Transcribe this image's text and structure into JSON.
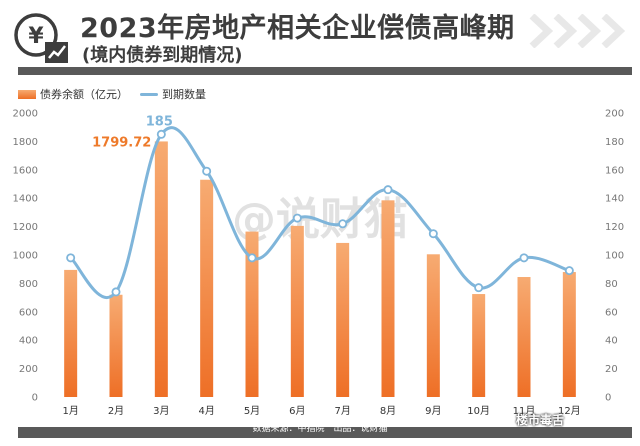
{
  "header": {
    "title": "2023年房地产相关企业偿债高峰期",
    "subtitle": "(境内债券到期情况)"
  },
  "watermark_center": "@说财猫",
  "footer": {
    "source_label": "数据来源：中指院",
    "publisher_label": "出品：说财猫"
  },
  "corner_watermark": "楼市毒舌",
  "colors": {
    "bar_top": "#f7ab72",
    "bar_bottom": "#ee6f26",
    "line": "#7fb5da",
    "bar_label": "#ee7a2a",
    "line_label": "#7fb5da",
    "rule": "#595959",
    "text": "#3d3d3d"
  },
  "chart_data": {
    "type": "bar",
    "categories": [
      "1月",
      "2月",
      "3月",
      "4月",
      "5月",
      "6月",
      "7月",
      "8月",
      "9月",
      "10月",
      "11月",
      "12月"
    ],
    "series": [
      {
        "name": "债券余额（亿元）",
        "type": "bar",
        "axis": "left",
        "values": [
          895,
          720,
          1799.72,
          1530,
          1165,
          1205,
          1085,
          1385,
          1005,
          725,
          845,
          880
        ]
      },
      {
        "name": "到期数量",
        "type": "line",
        "axis": "right",
        "values": [
          98,
          74,
          185,
          159,
          98,
          126,
          122,
          146,
          115,
          77,
          98,
          89
        ]
      }
    ],
    "annotations": [
      {
        "series": 0,
        "index": 2,
        "text": "1799.72"
      },
      {
        "series": 1,
        "index": 2,
        "text": "185"
      }
    ],
    "y_left": {
      "ylim": [
        0,
        2000
      ],
      "ticks": [
        "0",
        "200",
        "400",
        "600",
        "800",
        "1000",
        "1200",
        "1400",
        "1600",
        "1800",
        "2000"
      ]
    },
    "y_right": {
      "ylim": [
        0,
        200
      ],
      "ticks": [
        "0",
        "20",
        "40",
        "60",
        "80",
        "100",
        "120",
        "140",
        "160",
        "180",
        "200"
      ]
    },
    "grid": false,
    "legend": "top-left"
  }
}
